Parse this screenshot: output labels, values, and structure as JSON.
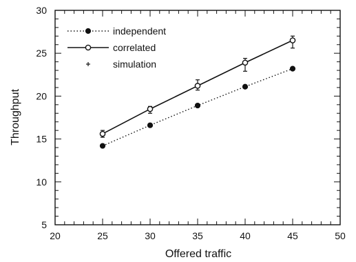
{
  "chart_data": {
    "type": "line",
    "title": "",
    "xlabel": "Offered traffic",
    "ylabel": "Throughput",
    "xlim": [
      20,
      50
    ],
    "ylim": [
      5,
      30
    ],
    "xticks": [
      20,
      25,
      30,
      35,
      40,
      45,
      50
    ],
    "yticks": [
      5,
      10,
      15,
      20,
      25,
      30
    ],
    "grid": false,
    "legend_position": "top-left",
    "x": [
      25,
      30,
      35,
      40,
      45
    ],
    "series": [
      {
        "name": "independent",
        "style": "dotted",
        "marker": "filled-circle",
        "values": [
          14.2,
          16.6,
          18.9,
          21.1,
          23.2
        ]
      },
      {
        "name": "correlated",
        "style": "solid",
        "marker": "open-circle",
        "values": [
          15.6,
          18.5,
          21.2,
          23.9,
          26.5
        ]
      },
      {
        "name": "simulation",
        "style": "errorbar",
        "marker": "plus",
        "values": [
          15.6,
          18.4,
          21.2,
          23.8,
          26.4
        ],
        "error_low": [
          15.2,
          18.0,
          20.7,
          22.9,
          25.6
        ],
        "error_high": [
          16.0,
          18.8,
          21.9,
          24.4,
          27.0
        ]
      }
    ]
  }
}
